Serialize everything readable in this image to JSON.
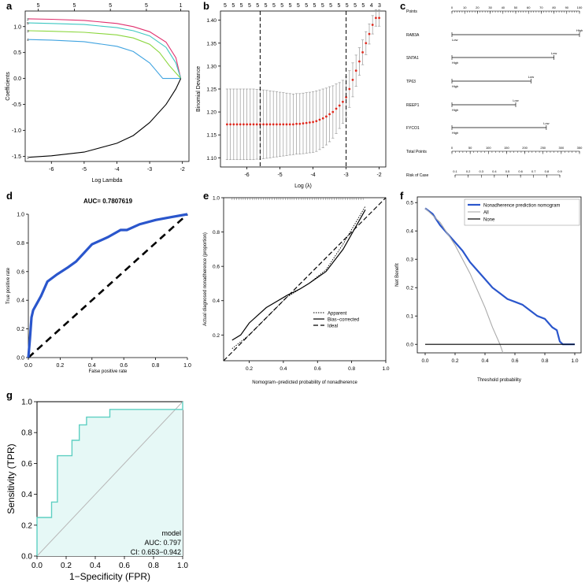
{
  "panels": {
    "a": {
      "letter": "a",
      "top_ticks": [
        "5",
        "5",
        "5",
        "5",
        "1"
      ],
      "xlabel": "Log Lambda",
      "ylabel": "Coefficients",
      "x_ticks": [
        "-6",
        "-5",
        "-4",
        "-3",
        "-2"
      ],
      "y_ticks": [
        "1.5",
        "1.0",
        "0.5",
        "0.0",
        "-0.5",
        "-1.0",
        "-1.5"
      ],
      "line_labels": [
        "2",
        "5",
        "3",
        "4",
        "1"
      ],
      "colors": [
        "#e0306e",
        "#3cc7c2",
        "#8ad63c",
        "#3fa3e0",
        "#000000"
      ]
    },
    "b": {
      "letter": "b",
      "top_ticks": [
        "5",
        "5",
        "5",
        "5",
        "5",
        "5",
        "5",
        "5",
        "5",
        "5",
        "5",
        "5",
        "5",
        "5",
        "5",
        "5",
        "5",
        "5",
        "4",
        "3"
      ],
      "xlabel": "Log (λ)",
      "ylabel": "Binomial Deviance",
      "x_ticks": [
        "-6",
        "-5",
        "-4",
        "-3",
        "-2"
      ],
      "y_ticks": [
        "1.40",
        "1.35",
        "1.30",
        "1.25",
        "1.20",
        "1.15",
        "1.10"
      ],
      "vline_values": [
        -5.6,
        -3.0
      ],
      "point_color": "#e02a1f"
    },
    "c": {
      "letter": "c",
      "rows": [
        {
          "label": "Points",
          "ticks": [
            "0",
            "10",
            "20",
            "30",
            "40",
            "50",
            "60",
            "70",
            "80",
            "90",
            "100"
          ]
        },
        {
          "label": "RAB3A",
          "left": "Low",
          "right": "High"
        },
        {
          "label": "SNTA1",
          "left": "High",
          "right": "Low"
        },
        {
          "label": "TP63",
          "left": "High",
          "right": "Low"
        },
        {
          "label": "REEP1",
          "left": "High",
          "right": "Low"
        },
        {
          "label": "FYCO1",
          "left": "High",
          "right": "Low"
        },
        {
          "label": "Total Points",
          "ticks": [
            "0",
            "50",
            "100",
            "150",
            "200",
            "250",
            "300",
            "350"
          ]
        },
        {
          "label": "Risk of Case",
          "ticks": [
            "0.1",
            "0.2",
            "0.3",
            "0.4",
            "0.5",
            "0.6",
            "0.7",
            "0.8",
            "0.9"
          ]
        }
      ]
    },
    "d": {
      "letter": "d",
      "title": "AUC= 0.7807619",
      "xlabel": "False positive rate",
      "ylabel": "True positive rate",
      "x_ticks": [
        "0.0",
        "0.2",
        "0.4",
        "0.6",
        "0.8",
        "1.0"
      ],
      "y_ticks": [
        "0.0",
        "0.2",
        "0.4",
        "0.6",
        "0.8",
        "1.0"
      ],
      "color": "#2a56cc"
    },
    "e": {
      "letter": "e",
      "xlabel": "Nomogram−predicted probability of nonadherence",
      "ylabel": "Actual diagnosed nonadherence (proportion)",
      "x_ticks": [
        "0.2",
        "0.4",
        "0.6",
        "0.8",
        "1.0"
      ],
      "y_ticks": [
        "0.2",
        "0.4",
        "0.6",
        "0.8",
        "1.0"
      ],
      "legend": [
        "Apparent",
        "Bias−corrected",
        "Ideal"
      ]
    },
    "f": {
      "letter": "f",
      "xlabel": "Threshold probability",
      "ylabel": "Net Benefit",
      "x_ticks": [
        "0.0",
        "0.2",
        "0.4",
        "0.6",
        "0.8",
        "1.0"
      ],
      "y_ticks": [
        "0.0",
        "0.1",
        "0.2",
        "0.3",
        "0.4",
        "0.5"
      ],
      "legend": [
        "Nonadherence prediction nomogram",
        "All",
        "None"
      ],
      "colors": [
        "#2a56cc",
        "#aaaaaa",
        "#000000"
      ]
    },
    "g": {
      "letter": "g",
      "xlabel": "1−Specificity (FPR)",
      "ylabel": "Sensitivity (TPR)",
      "x_ticks": [
        "0.0",
        "0.2",
        "0.4",
        "0.6",
        "0.8",
        "1.0"
      ],
      "y_ticks": [
        "0.0",
        "0.2",
        "0.4",
        "0.6",
        "0.8",
        "1.0"
      ],
      "annotation": [
        "model",
        "AUC: 0.797",
        "CI: 0.653−0.942"
      ],
      "color": "#5ecfc2",
      "fill": "#e6f8f6"
    }
  },
  "chart_data": [
    {
      "panel": "a",
      "type": "line",
      "title": "",
      "xlabel": "Log Lambda",
      "ylabel": "Coefficients",
      "xlim": [
        -6.8,
        -1.8
      ],
      "ylim": [
        -1.6,
        1.3
      ],
      "series": [
        {
          "name": "2",
          "x": [
            -6.7,
            -6,
            -5,
            -4,
            -3.5,
            -3,
            -2.5,
            -2.2,
            -2.05
          ],
          "values": [
            1.15,
            1.14,
            1.12,
            1.06,
            1.0,
            0.9,
            0.7,
            0.4,
            0.0
          ]
        },
        {
          "name": "5",
          "x": [
            -6.7,
            -6,
            -5,
            -4,
            -3.5,
            -3,
            -2.5,
            -2.2,
            -2.05
          ],
          "values": [
            1.07,
            1.06,
            1.04,
            0.98,
            0.92,
            0.82,
            0.6,
            0.3,
            0.0
          ]
        },
        {
          "name": "3",
          "x": [
            -6.7,
            -6,
            -5,
            -4,
            -3.5,
            -3,
            -2.7,
            -2.4,
            -2.05
          ],
          "values": [
            0.92,
            0.91,
            0.89,
            0.84,
            0.78,
            0.66,
            0.5,
            0.25,
            0.0
          ]
        },
        {
          "name": "4",
          "x": [
            -6.7,
            -6,
            -5,
            -4,
            -3.5,
            -3,
            -2.8,
            -2.6,
            -2.05
          ],
          "values": [
            0.75,
            0.74,
            0.71,
            0.62,
            0.52,
            0.3,
            0.15,
            0.0,
            0.0
          ]
        },
        {
          "name": "1",
          "x": [
            -6.7,
            -6,
            -5,
            -4,
            -3.5,
            -3,
            -2.5,
            -2.2,
            -2.05
          ],
          "values": [
            -1.52,
            -1.49,
            -1.42,
            -1.25,
            -1.1,
            -0.85,
            -0.5,
            -0.2,
            0.0
          ]
        }
      ]
    },
    {
      "panel": "b",
      "type": "scatter",
      "title": "",
      "xlabel": "Log (λ)",
      "ylabel": "Binomial Deviance",
      "xlim": [
        -6.8,
        -1.8
      ],
      "ylim": [
        1.08,
        1.42
      ],
      "x": [
        -6.6,
        -6.5,
        -6.4,
        -6.3,
        -6.2,
        -6.1,
        -6.0,
        -5.9,
        -5.8,
        -5.7,
        -5.6,
        -5.5,
        -5.4,
        -5.3,
        -5.2,
        -5.1,
        -5.0,
        -4.9,
        -4.8,
        -4.7,
        -4.6,
        -4.5,
        -4.4,
        -4.3,
        -4.2,
        -4.1,
        -4.0,
        -3.9,
        -3.8,
        -3.7,
        -3.6,
        -3.5,
        -3.4,
        -3.3,
        -3.2,
        -3.1,
        -3.0,
        -2.9,
        -2.8,
        -2.7,
        -2.6,
        -2.5,
        -2.4,
        -2.3,
        -2.2,
        -2.1,
        -2.0
      ],
      "values": [
        1.173,
        1.173,
        1.173,
        1.173,
        1.173,
        1.173,
        1.173,
        1.173,
        1.173,
        1.173,
        1.173,
        1.173,
        1.173,
        1.173,
        1.173,
        1.173,
        1.173,
        1.173,
        1.173,
        1.173,
        1.173,
        1.174,
        1.174,
        1.175,
        1.176,
        1.177,
        1.178,
        1.18,
        1.183,
        1.186,
        1.19,
        1.195,
        1.2,
        1.207,
        1.214,
        1.222,
        1.232,
        1.25,
        1.27,
        1.29,
        1.31,
        1.33,
        1.35,
        1.37,
        1.39,
        1.405,
        1.405
      ],
      "errors": [
        0.077,
        0.077,
        0.077,
        0.077,
        0.077,
        0.077,
        0.077,
        0.077,
        0.077,
        0.076,
        0.076,
        0.075,
        0.074,
        0.073,
        0.072,
        0.071,
        0.07,
        0.069,
        0.068,
        0.067,
        0.066,
        0.066,
        0.066,
        0.066,
        0.066,
        0.066,
        0.066,
        0.066,
        0.065,
        0.064,
        0.062,
        0.06,
        0.057,
        0.054,
        0.05,
        0.047,
        0.044,
        0.04,
        0.037,
        0.034,
        0.03,
        0.027,
        0.025,
        0.022,
        0.02,
        0.018,
        0.018
      ]
    },
    {
      "panel": "d",
      "type": "line",
      "title": "AUC= 0.7807619",
      "xlabel": "False positive rate",
      "ylabel": "True positive rate",
      "xlim": [
        0,
        1
      ],
      "ylim": [
        0,
        1
      ],
      "x": [
        0,
        0.01,
        0.02,
        0.03,
        0.05,
        0.08,
        0.12,
        0.18,
        0.25,
        0.3,
        0.4,
        0.5,
        0.58,
        0.62,
        0.7,
        0.8,
        0.9,
        1.0
      ],
      "values": [
        0,
        0.13,
        0.28,
        0.33,
        0.37,
        0.43,
        0.53,
        0.58,
        0.63,
        0.67,
        0.79,
        0.84,
        0.89,
        0.89,
        0.93,
        0.96,
        0.98,
        1.0
      ]
    },
    {
      "panel": "e",
      "type": "line",
      "title": "",
      "xlabel": "Nomogram−predicted probability of nonadherence",
      "ylabel": "Actual diagnosed nonadherence (proportion)",
      "xlim": [
        0.05,
        1.0
      ],
      "ylim": [
        0.05,
        1.0
      ],
      "series": [
        {
          "name": "Apparent",
          "x": [
            0.1,
            0.2,
            0.3,
            0.42,
            0.55,
            0.65,
            0.75,
            0.88
          ],
          "values": [
            0.12,
            0.2,
            0.3,
            0.42,
            0.5,
            0.58,
            0.73,
            0.95
          ]
        },
        {
          "name": "Bias−corrected",
          "x": [
            0.1,
            0.15,
            0.2,
            0.3,
            0.42,
            0.5,
            0.55,
            0.65,
            0.75,
            0.88
          ],
          "values": [
            0.17,
            0.2,
            0.27,
            0.36,
            0.43,
            0.47,
            0.5,
            0.57,
            0.7,
            0.93
          ]
        },
        {
          "name": "Ideal",
          "x": [
            0.05,
            1.0
          ],
          "values": [
            0.05,
            1.0
          ]
        }
      ]
    },
    {
      "panel": "f",
      "type": "line",
      "title": "",
      "xlabel": "Threshold probability",
      "ylabel": "Net Benefit",
      "xlim": [
        0,
        1.0
      ],
      "ylim": [
        -0.03,
        0.52
      ],
      "series": [
        {
          "name": "Nonadherence prediction nomogram",
          "x": [
            0,
            0.05,
            0.1,
            0.15,
            0.2,
            0.25,
            0.3,
            0.35,
            0.4,
            0.45,
            0.5,
            0.55,
            0.6,
            0.65,
            0.7,
            0.75,
            0.8,
            0.85,
            0.88,
            0.9,
            0.92,
            1.0
          ],
          "values": [
            0.48,
            0.46,
            0.42,
            0.39,
            0.36,
            0.33,
            0.29,
            0.26,
            0.23,
            0.2,
            0.18,
            0.16,
            0.15,
            0.14,
            0.12,
            0.1,
            0.09,
            0.06,
            0.05,
            0.01,
            0.0,
            0.0
          ]
        },
        {
          "name": "All",
          "x": [
            0,
            0.1,
            0.2,
            0.3,
            0.4,
            0.45,
            0.5,
            0.52
          ],
          "values": [
            0.48,
            0.43,
            0.35,
            0.25,
            0.13,
            0.06,
            0.0,
            -0.03
          ]
        },
        {
          "name": "None",
          "x": [
            0,
            1.0
          ],
          "values": [
            0,
            0
          ]
        }
      ]
    },
    {
      "panel": "g",
      "type": "line",
      "title": "",
      "xlabel": "1−Specificity (FPR)",
      "ylabel": "Sensitivity (TPR)",
      "xlim": [
        0,
        1
      ],
      "ylim": [
        0,
        1
      ],
      "x": [
        0,
        0,
        0.1,
        0.1,
        0.14,
        0.14,
        0.24,
        0.24,
        0.29,
        0.29,
        0.34,
        0.34,
        0.5,
        0.5,
        1.0,
        1.0
      ],
      "values": [
        0,
        0.25,
        0.25,
        0.35,
        0.35,
        0.65,
        0.65,
        0.75,
        0.75,
        0.85,
        0.85,
        0.9,
        0.9,
        0.95,
        0.95,
        1.0
      ]
    }
  ]
}
